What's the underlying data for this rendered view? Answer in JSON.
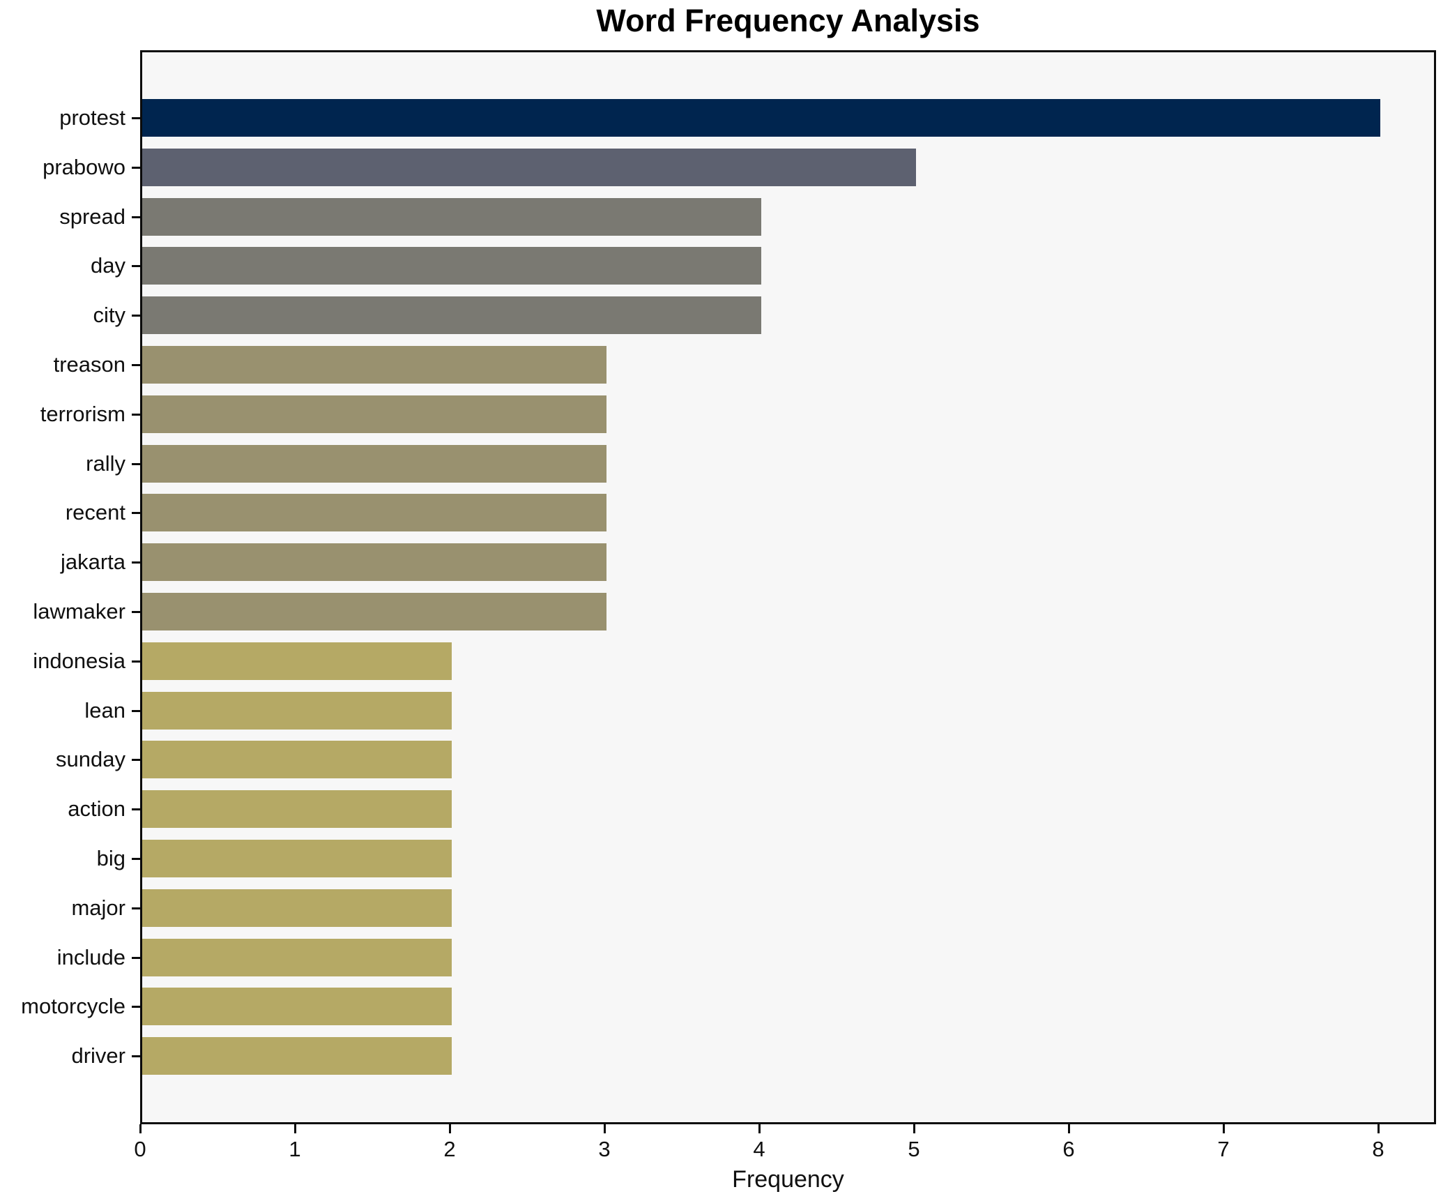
{
  "chart_data": {
    "type": "bar",
    "orientation": "horizontal",
    "title": "Word Frequency Analysis",
    "xlabel": "Frequency",
    "ylabel": "",
    "categories": [
      "protest",
      "prabowo",
      "spread",
      "day",
      "city",
      "treason",
      "terrorism",
      "rally",
      "recent",
      "jakarta",
      "lawmaker",
      "indonesia",
      "lean",
      "sunday",
      "action",
      "big",
      "major",
      "include",
      "motorcycle",
      "driver"
    ],
    "values": [
      8,
      5,
      4,
      4,
      4,
      3,
      3,
      3,
      3,
      3,
      3,
      2,
      2,
      2,
      2,
      2,
      2,
      2,
      2,
      2
    ],
    "bar_colors": [
      "#00254f",
      "#5d6170",
      "#7a7972",
      "#7a7972",
      "#7a7972",
      "#99916f",
      "#99916f",
      "#99916f",
      "#99916f",
      "#99916f",
      "#99916f",
      "#b5a965",
      "#b5a965",
      "#b5a965",
      "#b5a965",
      "#b5a965",
      "#b5a965",
      "#b5a965",
      "#b5a965",
      "#b5a965"
    ],
    "xticks": [
      "0",
      "1",
      "2",
      "3",
      "4",
      "5",
      "6",
      "7",
      "8"
    ],
    "xlim": [
      0,
      8.37
    ],
    "grid": false,
    "legend": false,
    "plot_background": "#f7f7f7",
    "figure_background": "#ffffff",
    "spine_color": "#0b0b0b"
  }
}
